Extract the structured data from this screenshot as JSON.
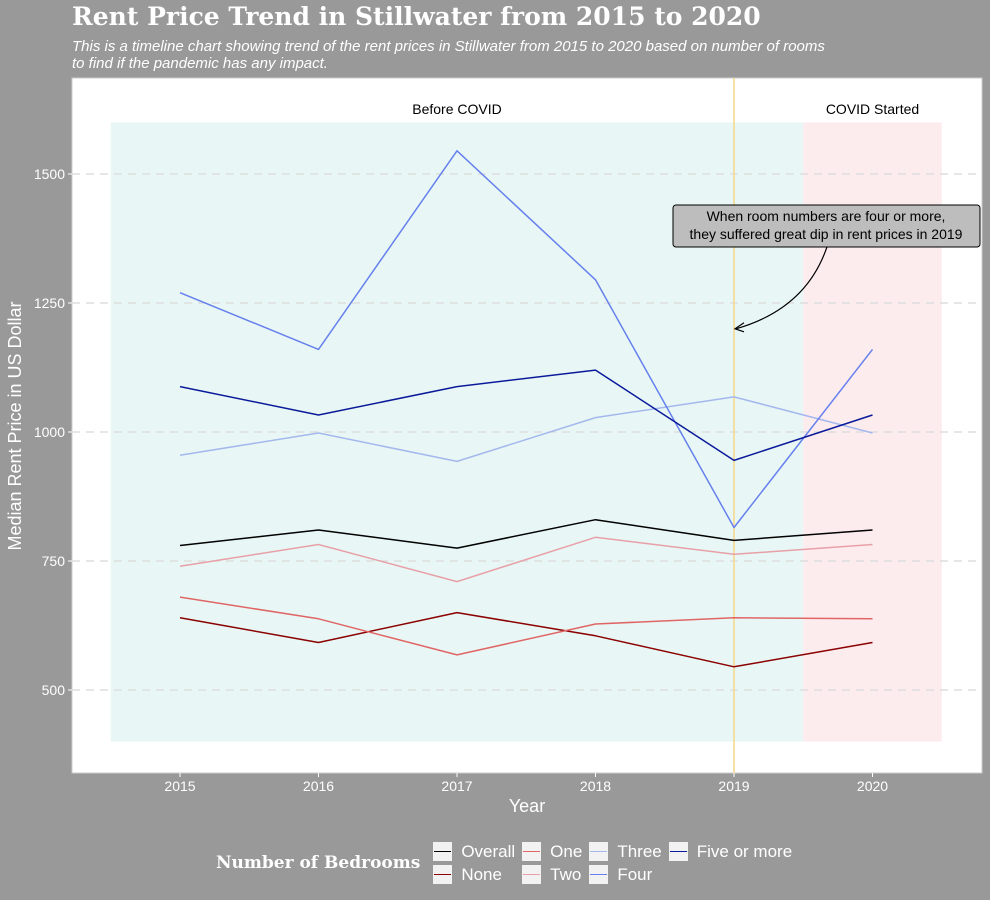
{
  "chart_data": {
    "type": "line",
    "title": "Rent Price Trend in Stillwater from 2015 to 2020",
    "subtitle_lines": [
      "This is a timeline chart showing trend of the rent prices in Stillwater from 2015 to 2020 based on number of rooms",
      "to find if the pandemic has any impact."
    ],
    "xlabel": "Year",
    "ylabel": "Median Rent Price in US Dollar",
    "x": [
      2015,
      2016,
      2017,
      2018,
      2019,
      2020
    ],
    "xlim": [
      2014.5,
      2020.5
    ],
    "ylim": [
      400,
      1600
    ],
    "yticks": [
      500,
      750,
      1000,
      1250,
      1500
    ],
    "grid": "horizontal-dashed",
    "series": [
      {
        "name": "Overall",
        "color": "#000000",
        "values": [
          780,
          810,
          775,
          830,
          790,
          810
        ]
      },
      {
        "name": "None",
        "color": "#8b0000",
        "values": [
          640,
          592,
          650,
          605,
          545,
          592
        ]
      },
      {
        "name": "One",
        "color": "#e06666",
        "values": [
          680,
          638,
          568,
          628,
          640,
          638
        ]
      },
      {
        "name": "Two",
        "color": "#e8a0a8",
        "values": [
          740,
          782,
          710,
          796,
          763,
          782
        ]
      },
      {
        "name": "Three",
        "color": "#a4b8ee",
        "values": [
          955,
          998,
          943,
          1028,
          1068,
          998
        ]
      },
      {
        "name": "Four",
        "color": "#6680ee",
        "values": [
          1270,
          1160,
          1545,
          1295,
          815,
          1160
        ]
      },
      {
        "name": "Five or more",
        "color": "#0a1a9a",
        "values": [
          1088,
          1033,
          1088,
          1120,
          945,
          1033
        ]
      }
    ],
    "regions": [
      {
        "label": "Before COVID",
        "x_range": [
          2014.5,
          2019.5
        ],
        "y_range": [
          400,
          1600
        ],
        "color": "#e8f7f5"
      },
      {
        "label": "COVID Started",
        "x_range": [
          2019.5,
          2020.5
        ],
        "y_range": [
          400,
          1600
        ],
        "color": "#fdecee"
      }
    ],
    "vline": {
      "x": 2019,
      "color": "#f5d78a"
    },
    "annotation": {
      "lines": [
        "When room numbers are four or more,",
        "they suffered great dip in rent prices in 2019"
      ],
      "arrow_to": {
        "x": 2019,
        "y": 1200
      }
    },
    "legend": {
      "title": "Number of Bedrooms",
      "position": "bottom"
    }
  }
}
